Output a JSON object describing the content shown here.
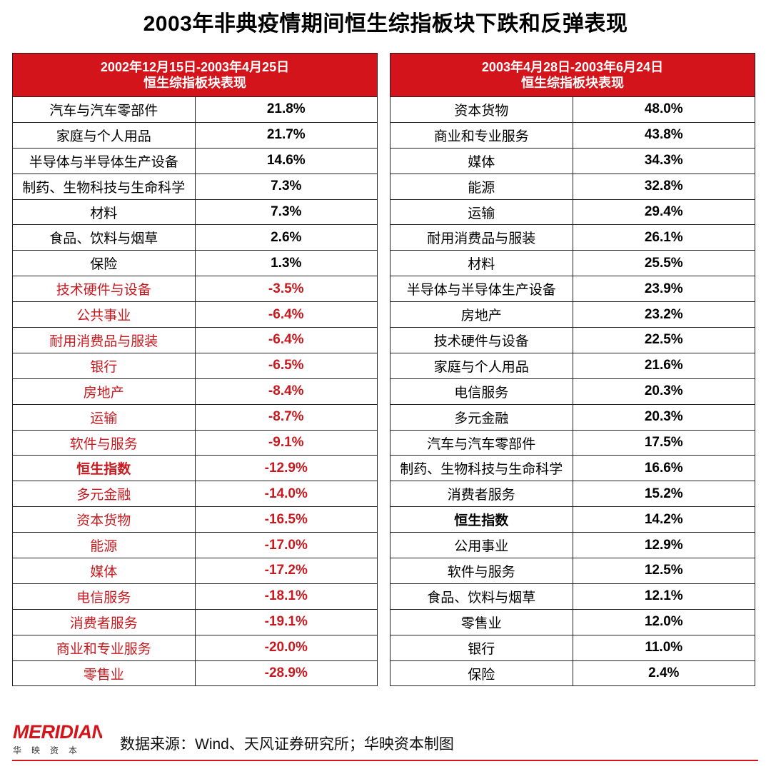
{
  "title": "2003年非典疫情期间恒生综指板块下跌和反弹表现",
  "left_table": {
    "header_line1": "2002年12月15日-2003年4月25日",
    "header_line2": "恒生综指板块表现",
    "rows": [
      {
        "name": "汽车与汽车零部件",
        "value": "21.8%"
      },
      {
        "name": "家庭与个人用品",
        "value": "21.7%"
      },
      {
        "name": "半导体与半导体生产设备",
        "value": "14.6%"
      },
      {
        "name": "制药、生物科技与生命科学",
        "value": "7.3%"
      },
      {
        "name": "材料",
        "value": "7.3%"
      },
      {
        "name": "食品、饮料与烟草",
        "value": "2.6%"
      },
      {
        "name": "保险",
        "value": "1.3%"
      },
      {
        "name": "技术硬件与设备",
        "value": "-3.5%"
      },
      {
        "name": "公共事业",
        "value": "-6.4%"
      },
      {
        "name": "耐用消费品与服装",
        "value": "-6.4%"
      },
      {
        "name": "银行",
        "value": "-6.5%"
      },
      {
        "name": "房地产",
        "value": "-8.4%"
      },
      {
        "name": "运输",
        "value": "-8.7%"
      },
      {
        "name": "软件与服务",
        "value": "-9.1%"
      },
      {
        "name": "恒生指数",
        "value": "-12.9%"
      },
      {
        "name": "多元金融",
        "value": "-14.0%"
      },
      {
        "name": "资本货物",
        "value": "-16.5%"
      },
      {
        "name": "能源",
        "value": "-17.0%"
      },
      {
        "name": "媒体",
        "value": "-17.2%"
      },
      {
        "name": "电信服务",
        "value": "-18.1%"
      },
      {
        "name": "消费者服务",
        "value": "-19.1%"
      },
      {
        "name": "商业和专业服务",
        "value": "-20.0%"
      },
      {
        "name": "零售业",
        "value": "-28.9%"
      }
    ]
  },
  "right_table": {
    "header_line1": "2003年4月28日-2003年6月24日",
    "header_line2": "恒生综指板块表现",
    "rows": [
      {
        "name": "资本货物",
        "value": "48.0%"
      },
      {
        "name": "商业和专业服务",
        "value": "43.8%"
      },
      {
        "name": "媒体",
        "value": "34.3%"
      },
      {
        "name": "能源",
        "value": "32.8%"
      },
      {
        "name": "运输",
        "value": "29.4%"
      },
      {
        "name": "耐用消费品与服装",
        "value": "26.1%"
      },
      {
        "name": "材料",
        "value": "25.5%"
      },
      {
        "name": "半导体与半导体生产设备",
        "value": "23.9%"
      },
      {
        "name": "房地产",
        "value": "23.2%"
      },
      {
        "name": "技术硬件与设备",
        "value": "22.5%"
      },
      {
        "name": "家庭与个人用品",
        "value": "21.6%"
      },
      {
        "name": "电信服务",
        "value": "20.3%"
      },
      {
        "name": "多元金融",
        "value": "20.3%"
      },
      {
        "name": "汽车与汽车零部件",
        "value": "17.5%"
      },
      {
        "name": "制药、生物科技与生命科学",
        "value": "16.6%"
      },
      {
        "name": "消费者服务",
        "value": "15.2%"
      },
      {
        "name": "恒生指数",
        "value": "14.2%"
      },
      {
        "name": "公用事业",
        "value": "12.9%"
      },
      {
        "name": "软件与服务",
        "value": "12.5%"
      },
      {
        "name": "食品、饮料与烟草",
        "value": "12.1%"
      },
      {
        "name": "零售业",
        "value": "12.0%"
      },
      {
        "name": "银行",
        "value": "11.0%"
      },
      {
        "name": "保险",
        "value": "2.4%"
      }
    ]
  },
  "footer": {
    "logo_text": "MERIDIAN",
    "logo_sub": "华映资本",
    "source": "数据来源：Wind、天风证券研究所；华映资本制图"
  },
  "colors": {
    "accent_red": "#d3141b",
    "negative_text": "#c8191f"
  }
}
